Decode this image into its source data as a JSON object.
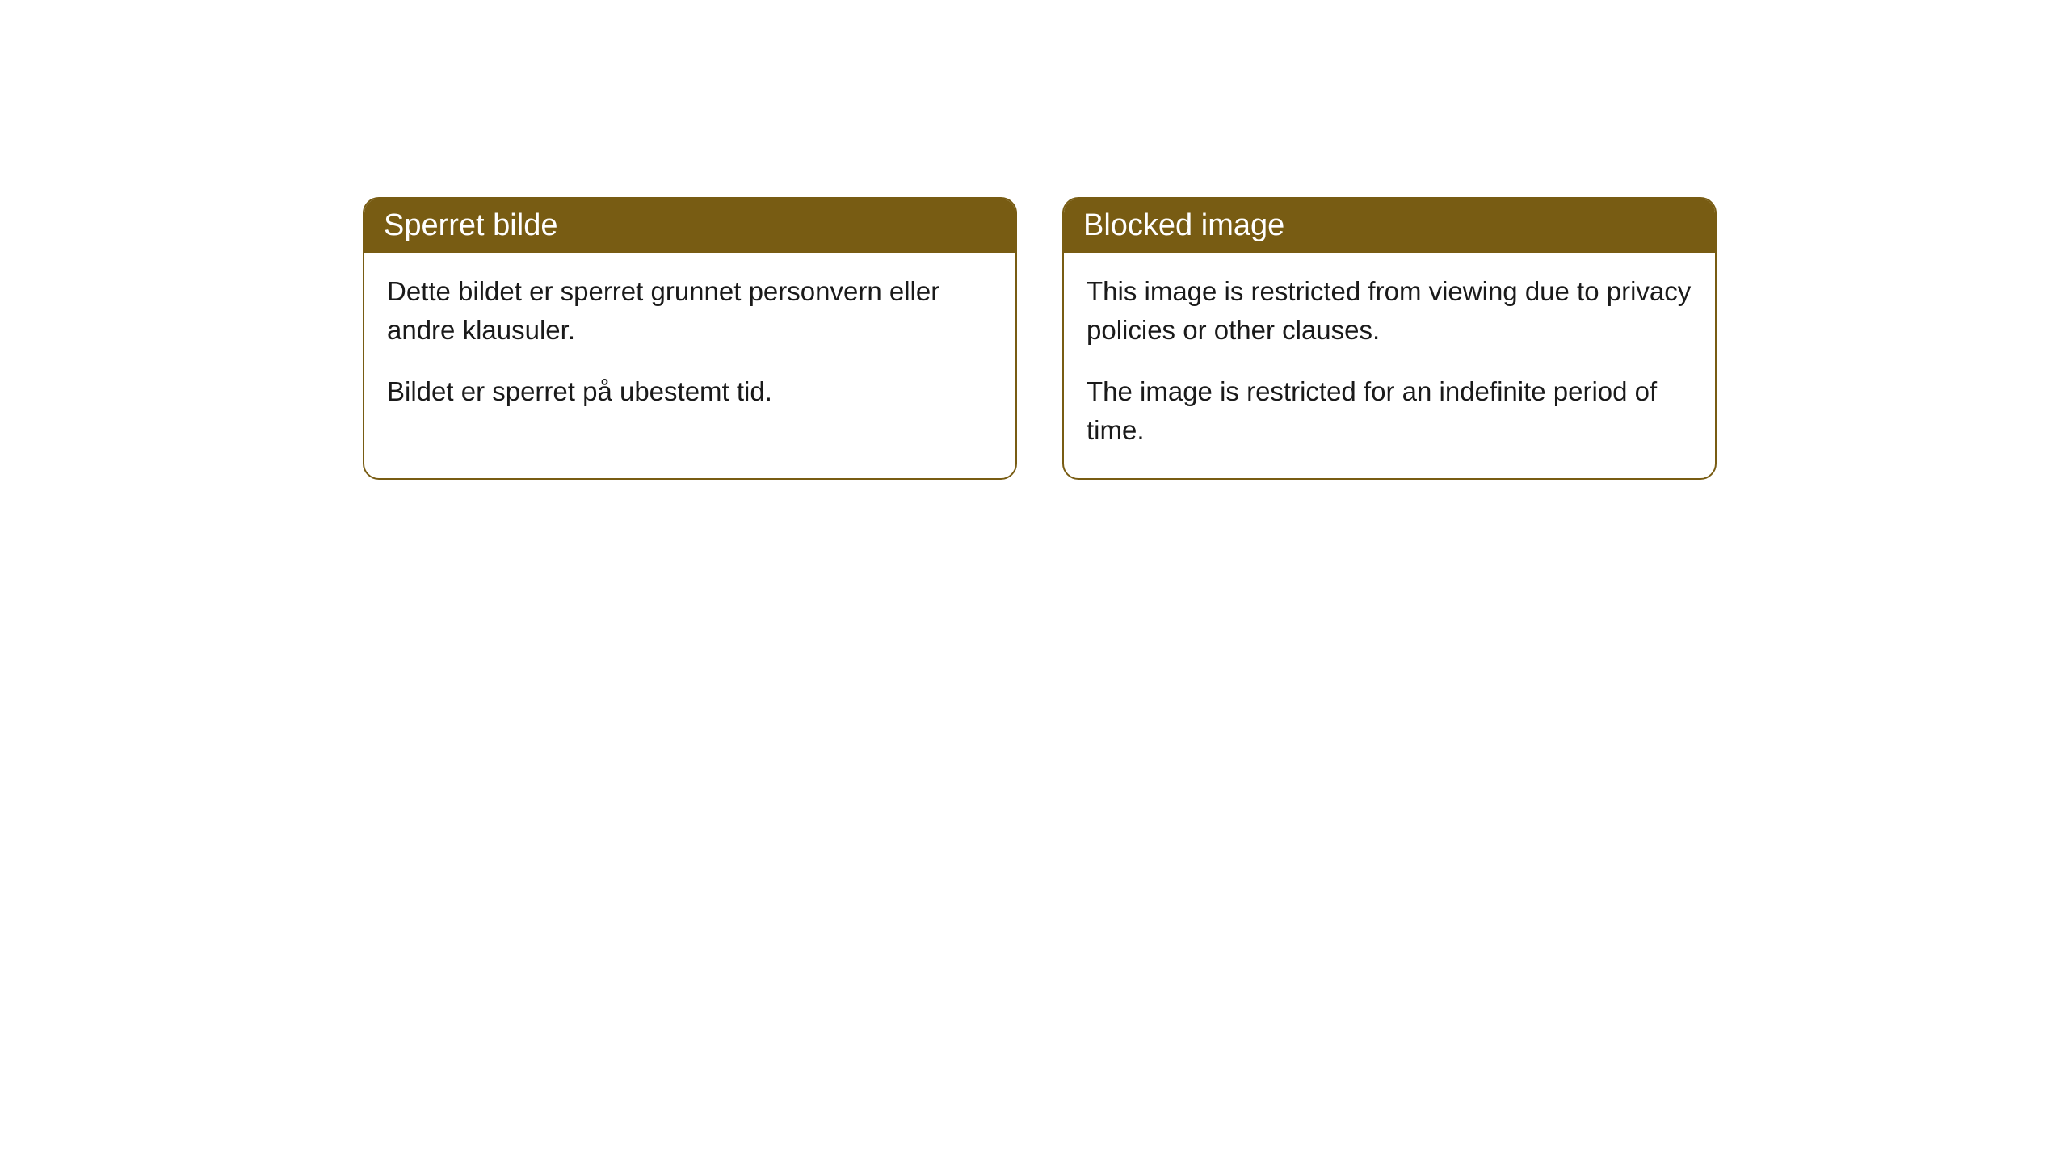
{
  "cards": {
    "norwegian": {
      "title": "Sperret bilde",
      "paragraphs": [
        "Dette bildet er sperret grunnet personvern eller andre klausuler.",
        "Bildet er sperret på ubestemt tid."
      ]
    },
    "english": {
      "title": "Blocked image",
      "paragraphs": [
        "This image is restricted from viewing due to privacy policies or other clauses.",
        "The image is restricted for an indefinite period of time."
      ]
    }
  },
  "colors": {
    "header_bg": "#785c13",
    "header_text": "#ffffff",
    "border": "#785c13",
    "body_text": "#1a1a1a",
    "background": "#ffffff"
  }
}
